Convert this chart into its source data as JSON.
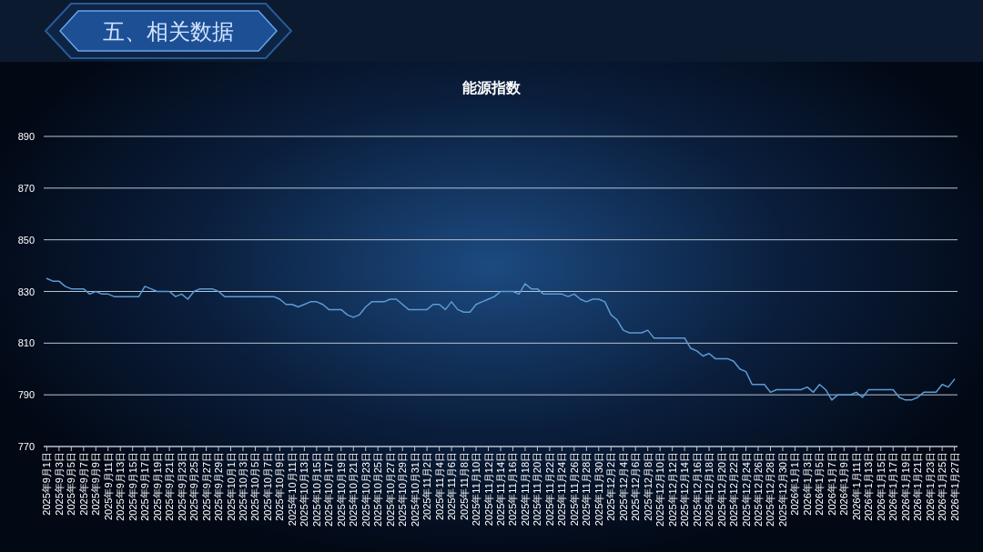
{
  "chart_data": {
    "type": "line",
    "title": "能源指数",
    "subtitle": "五、相关数据",
    "categories": [
      "2025年9月1日",
      null,
      "2025年9月3日",
      null,
      "2025年9月5日",
      null,
      "2025年9月7日",
      null,
      "2025年9月9日",
      null,
      "2025年9月11日",
      null,
      "2025年9月13日",
      null,
      "2025年9月15日",
      null,
      "2025年9月17日",
      null,
      "2025年9月19日",
      null,
      "2025年9月21日",
      null,
      "2025年9月23日",
      null,
      "2025年9月25日",
      null,
      "2025年9月27日",
      null,
      "2025年9月29日",
      null,
      "2025年10月1日",
      null,
      "2025年10月3日",
      null,
      "2025年10月5日",
      null,
      "2025年10月7日",
      null,
      "2025年10月9日",
      null,
      "2025年10月11日",
      null,
      "2025年10月13日",
      null,
      "2025年10月15日",
      null,
      "2025年10月17日",
      null,
      "2025年10月19日",
      null,
      "2025年10月21日",
      null,
      "2025年10月23日",
      null,
      "2025年10月25日",
      null,
      "2025年10月27日",
      null,
      "2025年10月29日",
      null,
      "2025年10月31日",
      null,
      "2025年11月2日",
      null,
      "2025年11月4日",
      null,
      "2025年11月6日",
      null,
      "2025年11月8日",
      null,
      "2025年11月10日",
      null,
      "2025年11月12日",
      null,
      "2025年11月14日",
      null,
      "2025年11月16日",
      null,
      "2025年11月18日",
      null,
      "2025年11月20日",
      null,
      "2025年11月22日",
      null,
      "2025年11月24日",
      null,
      "2025年11月26日",
      null,
      "2025年11月28日",
      null,
      "2025年11月30日",
      null,
      "2025年12月2日",
      null,
      "2025年12月4日",
      null,
      "2025年12月6日",
      null,
      "2025年12月8日",
      null,
      "2025年12月10日",
      null,
      "2025年12月12日",
      null,
      "2025年12月14日",
      null,
      "2025年12月16日",
      null,
      "2025年12月18日",
      null,
      "2025年12月20日",
      null,
      "2025年12月22日",
      null,
      "2025年12月24日",
      null,
      "2025年12月26日",
      null,
      "2025年12月28日",
      null,
      "2025年12月30日",
      null,
      "2026年1月1日",
      null,
      "2026年1月3日",
      null,
      "2026年1月5日",
      null,
      "2026年1月7日",
      null,
      "2026年1月9日",
      null,
      "2026年1月11日",
      null,
      "2026年1月13日",
      null,
      "2026年1月15日",
      null,
      "2026年1月17日",
      null,
      "2026年1月19日",
      null,
      "2026年1月21日",
      null,
      "2026年1月23日",
      null,
      "2026年1月25日",
      null,
      "2026年1月27日"
    ],
    "values": [
      835,
      834,
      834,
      832,
      831,
      831,
      831,
      829,
      830,
      829,
      829,
      828,
      828,
      828,
      828,
      828,
      832,
      831,
      830,
      830,
      830,
      828,
      829,
      827,
      830,
      831,
      831,
      831,
      830,
      828,
      828,
      828,
      828,
      828,
      828,
      828,
      828,
      828,
      827,
      825,
      825,
      824,
      825,
      826,
      826,
      825,
      823,
      823,
      823,
      821,
      820,
      821,
      824,
      826,
      826,
      826,
      827,
      827,
      825,
      823,
      823,
      823,
      823,
      825,
      825,
      823,
      826,
      823,
      822,
      822,
      825,
      826,
      827,
      828,
      830,
      830,
      830,
      829,
      833,
      831,
      831,
      829,
      829,
      829,
      829,
      828,
      829,
      827,
      826,
      827,
      827,
      826,
      821,
      819,
      815,
      814,
      814,
      814,
      815,
      812,
      812,
      812,
      812,
      812,
      812,
      808,
      807,
      805,
      806,
      804,
      804,
      804,
      803,
      800,
      799,
      794,
      794,
      794,
      791,
      792,
      792,
      792,
      792,
      792,
      793,
      791,
      794,
      792,
      788,
      790,
      790,
      790,
      791,
      789,
      792,
      792,
      792,
      792,
      792,
      789,
      788,
      788,
      789,
      791,
      791,
      791,
      794,
      793,
      796
    ],
    "color": "#5b9bd5",
    "ylim": [
      770,
      890
    ],
    "yticks": [
      770,
      790,
      810,
      830,
      850,
      870,
      890
    ],
    "grid": "y"
  }
}
